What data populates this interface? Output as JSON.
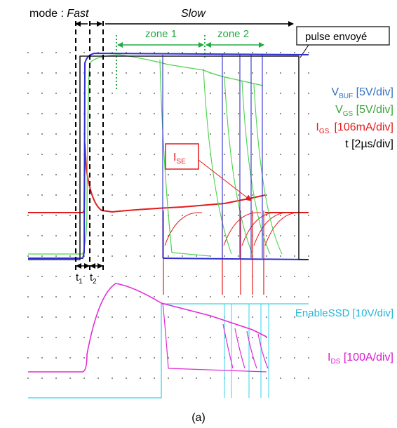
{
  "header": {
    "mode_prefix": "mode : ",
    "mode_fast": "Fast",
    "mode_slow": "Slow",
    "zone1": "zone 1",
    "zone2": "zone 2",
    "pulse_box": "pulse envoyé"
  },
  "channels": [
    {
      "prefix": "V",
      "sub": "BUF",
      "suffix": " [5V/div]",
      "color": "#2f72c4"
    },
    {
      "prefix": "V",
      "sub": "GS",
      "suffix": " [5V/div]",
      "color": "#3aa33a"
    },
    {
      "prefix": "I",
      "sub": "GS.",
      "suffix": " [106mA/div]",
      "color": "#e31b1b"
    },
    {
      "prefix": "",
      "sub": "",
      "suffix": "t [2µs/div]",
      "color": "#000000"
    }
  ],
  "annotations": {
    "ise_prefix": "I",
    "ise_sub": "SE",
    "t1_prefix": "t",
    "t1_sub": "1",
    "t2_prefix": "t",
    "t2_sub": "2",
    "enable_ssd": "EnableSSD [10V/div]",
    "ids_prefix": "I",
    "ids_sub": "DS",
    "ids_suffix": " [100A/div]"
  },
  "caption": "(a)",
  "colors": {
    "vbuf": "#2f2fd0",
    "vgs": "#4cd24c",
    "igs": "#e31b1b",
    "pulse": "#222222",
    "enable": "#33d6e8",
    "ids": "#e22ad6",
    "zone": "#22aa44"
  },
  "chart_data": {
    "type": "line",
    "time_unit": "µs",
    "time_per_div": 2,
    "x_range": [
      0,
      20
    ],
    "divisions_y": 10,
    "series": [
      {
        "name": "pulse envoyé",
        "points": [
          [
            0,
            0
          ],
          [
            3.8,
            0
          ],
          [
            3.8,
            7.2
          ],
          [
            19.5,
            7.2
          ],
          [
            19.5,
            0
          ],
          [
            20,
            0
          ]
        ]
      },
      {
        "name": "V_BUF",
        "points": [
          [
            0,
            0
          ],
          [
            4.1,
            0
          ],
          [
            4.2,
            6.9
          ],
          [
            20,
            6.9
          ]
        ]
      },
      {
        "name": "V_GS",
        "points": [
          [
            0,
            0
          ],
          [
            4.0,
            0
          ],
          [
            4.6,
            6.6
          ],
          [
            6.0,
            7.0
          ],
          [
            8,
            6.3
          ],
          [
            10,
            6.0
          ],
          [
            12,
            5.8
          ],
          [
            13,
            5.0
          ],
          [
            14,
            4.5
          ],
          [
            17,
            3.2
          ]
        ]
      },
      {
        "name": "I_GS",
        "points": [
          [
            0,
            2.2
          ],
          [
            4.0,
            2.2
          ],
          [
            4.1,
            5.0
          ],
          [
            4.6,
            2.6
          ],
          [
            5.2,
            2.3
          ],
          [
            6,
            2.2
          ],
          [
            10,
            2.4
          ],
          [
            14,
            2.6
          ],
          [
            17,
            2.8
          ]
        ]
      },
      {
        "name": "EnableSSD",
        "points": [
          [
            0,
            -4.6
          ],
          [
            10,
            -4.6
          ],
          [
            10,
            -1.6
          ],
          [
            20,
            -1.6
          ]
        ]
      },
      {
        "name": "I_DS",
        "points": [
          [
            0,
            -3.6
          ],
          [
            4.1,
            -3.6
          ],
          [
            4.5,
            -2.4
          ],
          [
            6,
            -1.0
          ],
          [
            8,
            -1.3
          ],
          [
            10,
            -1.6
          ],
          [
            14,
            -2.3
          ],
          [
            17,
            -2.8
          ]
        ]
      }
    ]
  }
}
